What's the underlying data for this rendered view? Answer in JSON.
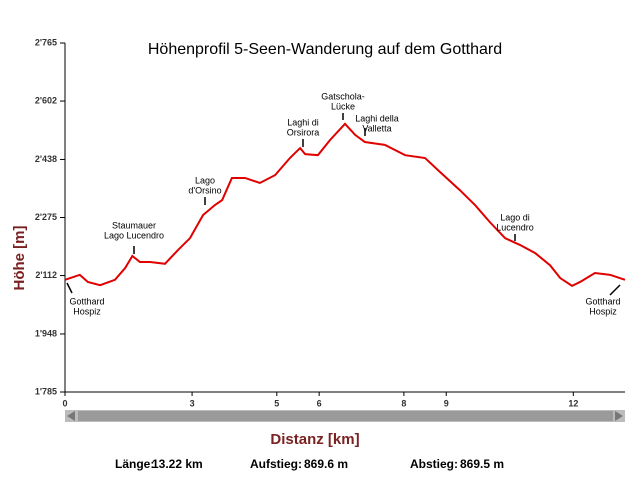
{
  "chart_data": {
    "type": "line",
    "title": "Höhenprofil 5-Seen-Wanderung auf dem Gotthard",
    "y_label": "Höhe [m]",
    "x_label": "Distanz [km]",
    "x": [
      0,
      0.35,
      0.54,
      0.83,
      1.18,
      1.42,
      1.59,
      1.77,
      2.01,
      2.36,
      2.67,
      2.95,
      3.26,
      3.54,
      3.71,
      3.94,
      4.25,
      4.6,
      4.96,
      5.31,
      5.55,
      5.67,
      5.97,
      6.26,
      6.61,
      6.85,
      7.08,
      7.55,
      8.03,
      8.5,
      8.85,
      9.32,
      9.68,
      10.03,
      10.39,
      10.74,
      11.1,
      11.45,
      11.69,
      11.97,
      12.16,
      12.51,
      12.87,
      13.22
    ],
    "series": [
      {
        "name": "Höhe",
        "color": "#e00000",
        "values": [
          2100,
          2114,
          2094,
          2085,
          2100,
          2133,
          2167,
          2150,
          2150,
          2145,
          2184,
          2217,
          2282,
          2310,
          2324,
          2386,
          2386,
          2372,
          2394,
          2442,
          2470,
          2453,
          2450,
          2493,
          2538,
          2507,
          2487,
          2479,
          2450,
          2442,
          2403,
          2352,
          2310,
          2262,
          2217,
          2198,
          2175,
          2141,
          2105,
          2083,
          2094,
          2119,
          2114,
          2100
        ]
      }
    ],
    "xlim": [
      0,
      13.22
    ],
    "xticks": [
      0,
      3,
      5,
      6,
      8,
      9,
      12
    ],
    "ylim": [
      1785,
      2765
    ],
    "yticks": [
      {
        "value": 1785,
        "label": "1'785"
      },
      {
        "value": 1948,
        "label": "1'948"
      },
      {
        "value": 2112,
        "label": "2'112"
      },
      {
        "value": 2275,
        "label": "2'275"
      },
      {
        "value": 2438,
        "label": "2'438"
      },
      {
        "value": 2602,
        "label": "2'602"
      },
      {
        "value": 2765,
        "label": "2'765"
      }
    ],
    "annotations": [
      {
        "lines": [
          "Gotthard",
          "Hospiz"
        ]
      },
      {
        "lines": [
          "Staumauer",
          "Lago Lucendro"
        ]
      },
      {
        "lines": [
          "Lago",
          "d'Orsino"
        ]
      },
      {
        "lines": [
          "Laghi di",
          "Orsirora"
        ]
      },
      {
        "lines": [
          "Gatschola-",
          "Lücke"
        ]
      },
      {
        "lines": [
          "Laghi della",
          "Valletta"
        ]
      },
      {
        "lines": [
          "Lago di",
          "Lucendro"
        ]
      },
      {
        "lines": [
          "Gotthard",
          "Hospiz"
        ]
      }
    ],
    "summary": [
      {
        "label": "Länge:",
        "value": "13.22 km"
      },
      {
        "label": "Aufstieg:",
        "value": "869.6 m"
      },
      {
        "label": "Abstieg:",
        "value": "869.5 m"
      }
    ]
  }
}
